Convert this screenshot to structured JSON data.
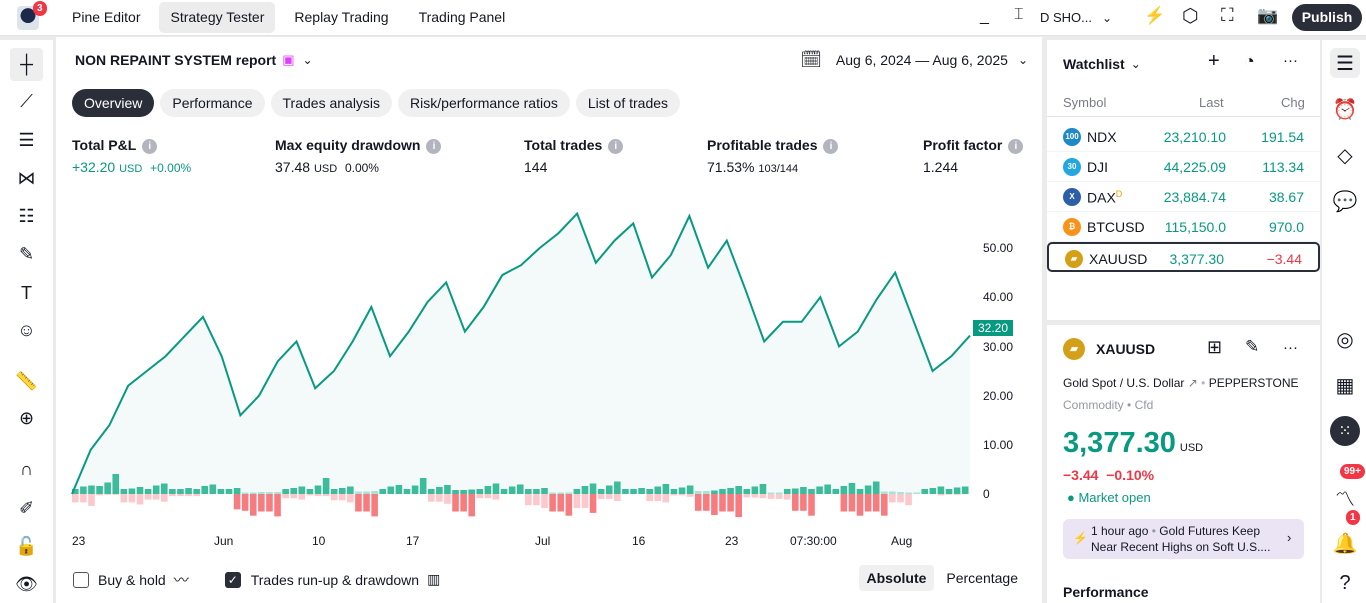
{
  "topbar": {
    "notif_count": "3",
    "tabs": [
      "Pine Editor",
      "Strategy Tester",
      "Replay Trading",
      "Trading Panel"
    ],
    "active_tab": 1,
    "symbol_trunc": "D SHO...",
    "publish": "Publish"
  },
  "report": {
    "title": "NON REPAINT SYSTEM report",
    "date_range": "Aug 6, 2024 — Aug 6, 2025",
    "tabs": [
      "Overview",
      "Performance",
      "Trades analysis",
      "Risk/performance ratios",
      "List of trades"
    ],
    "metrics": [
      {
        "label": "Total P&L",
        "value": "+32.20",
        "unit": "USD",
        "extra": "+0.00%"
      },
      {
        "label": "Max equity drawdown",
        "value": "37.48",
        "unit": "USD",
        "extra": "0.00%"
      },
      {
        "label": "Total trades",
        "value": "144"
      },
      {
        "label": "Profitable trades",
        "value": "71.53%",
        "extra": "103/144"
      },
      {
        "label": "Profit factor",
        "value": "1.244"
      }
    ],
    "buy_hold": "Buy & hold",
    "runup": "Trades run-up & drawdown",
    "absolute": "Absolute",
    "percentage": "Percentage"
  },
  "chart_data": {
    "type": "line",
    "ylim": [
      0,
      55
    ],
    "yticks": [
      "50.00",
      "40.00",
      "30.00",
      "20.00",
      "10.00",
      "0"
    ],
    "last_label": "32.20",
    "xticks": [
      "23",
      "Jun",
      "10",
      "17",
      "Jul",
      "16",
      "23",
      "07:30:00",
      "Aug"
    ],
    "equity": [
      0,
      9,
      14,
      22,
      25,
      28,
      32,
      36,
      28,
      16,
      20,
      27,
      31,
      21.5,
      25,
      31,
      38,
      28,
      33,
      39,
      43,
      33,
      38,
      44.5,
      46.5,
      50,
      53,
      57,
      47,
      51.5,
      55,
      44,
      48.5,
      56.5,
      46,
      51.5,
      41.5,
      31,
      35,
      35,
      40,
      30,
      33,
      39.5,
      45,
      35,
      25,
      28,
      32.2
    ],
    "runup": [
      1,
      1.5,
      1.7,
      1.6,
      2.3,
      4,
      1,
      1.1,
      1.4,
      1,
      1.7,
      2.1,
      1,
      1,
      1.2,
      1,
      1.6,
      1.9,
      1,
      1,
      1.2,
      0.3,
      0.3,
      0.4,
      0.4,
      0.4,
      1,
      1.2,
      1.5,
      1,
      1.7,
      3.2,
      1,
      1.2,
      1.5,
      0.5,
      0.5,
      0.6,
      1,
      1.5,
      1.8,
      1,
      1.7,
      3.2,
      1,
      1.4,
      1.8,
      0.8,
      0.8,
      0.9,
      1,
      1.6,
      2.1,
      1,
      1.5,
      1.9,
      1,
      1,
      1.2,
      0.3,
      0.3,
      0.3,
      1,
      1.6,
      2.1,
      1,
      1.7,
      2.5,
      1,
      1,
      1.2,
      1,
      1.5,
      2,
      1,
      1.3,
      1.7,
      0.6,
      0.6,
      0.7,
      1,
      1.2,
      1.6,
      1,
      1.5,
      2,
      0.3,
      0.3,
      1,
      1.1,
      1.4,
      1,
      1.5,
      1.9,
      1,
      1.6,
      2.2,
      1,
      1.7,
      2.5,
      0.5,
      0.5,
      0.4,
      0.3,
      0.3,
      1,
      1.2,
      1.5,
      1,
      1.3,
      1.5
    ],
    "drawdown": [
      -1.2,
      -1.2,
      -1.7,
      -0.2,
      -0.1,
      -0.1,
      -1.2,
      -1.2,
      -1.5,
      -0.8,
      -0.8,
      -1.1,
      -0.3,
      -0.3,
      -0.3,
      -0.3,
      0,
      0,
      0,
      0,
      -2.2,
      -2.4,
      -3.1,
      -2.5,
      -2.5,
      -3.2,
      -0.6,
      -0.6,
      -0.8,
      -0.2,
      -0.3,
      -0.3,
      -0.9,
      -0.9,
      -1.2,
      -2.5,
      -2.5,
      -3.2,
      0,
      0,
      0,
      0,
      0,
      0,
      -1.1,
      -1.1,
      -1.4,
      -2.5,
      -2.5,
      -3.2,
      -0.6,
      -0.6,
      -0.8,
      0,
      0,
      0,
      -1.6,
      -1.6,
      -2,
      -2.5,
      -2.5,
      -3.1,
      -2,
      -2,
      -2.7,
      -0.7,
      -0.7,
      -1,
      0,
      0,
      0,
      -1,
      -1,
      -1.2,
      -0.2,
      -0.2,
      -0.4,
      -2.4,
      -2.4,
      -3,
      -2.5,
      -2.5,
      -3.3,
      -0.5,
      -0.5,
      -0.6,
      -0.7,
      -0.7,
      -0.8,
      -2.4,
      -2.4,
      -3.1,
      0,
      0,
      0,
      -2.5,
      -2.5,
      -3.1,
      -2.5,
      -2.5,
      -3.1,
      -1.2,
      -1.2,
      -1.6,
      0,
      0,
      0,
      -0.2,
      -0.1,
      -0.1
    ]
  },
  "watchlist": {
    "title": "Watchlist",
    "cols": [
      "Symbol",
      "Last",
      "Chg"
    ],
    "rows": [
      {
        "sym": "NDX",
        "badge": "100",
        "color": "#1e88c8",
        "last": "23,210.10",
        "chg": "191.54",
        "neg": false
      },
      {
        "sym": "DJI",
        "badge": "30",
        "color": "#22a7e0",
        "last": "44,225.09",
        "chg": "113.34",
        "neg": false
      },
      {
        "sym": "DAX",
        "badge": "X",
        "color": "#2c5fa8",
        "sup": "D",
        "last": "23,884.74",
        "chg": "38.67",
        "neg": false
      },
      {
        "sym": "BTCUSD",
        "badge": "₿",
        "color": "#f7931a",
        "last": "115,150.0",
        "chg": "970.0",
        "neg": false
      },
      {
        "sym": "XAUUSD",
        "badge": "▰",
        "color": "#d4a017",
        "last": "3,377.30",
        "chg": "−3.44",
        "neg": true
      }
    ]
  },
  "detail": {
    "symbol": "XAUUSD",
    "name": "Gold Spot / U.S. Dollar",
    "exchange": "PEPPERSTONE",
    "type": "Commodity",
    "subtype": "Cfd",
    "price": "3,377.30",
    "currency": "USD",
    "change": "−3.44",
    "change_pct": "−0.10%",
    "status": "Market open",
    "news_time": "1 hour ago",
    "news_text": "Gold Futures Keep Near Recent Highs on Soft U.S....",
    "performance": "Performance"
  },
  "rightbar": {
    "ideas_badge": "99+",
    "alerts_badge": "1"
  }
}
